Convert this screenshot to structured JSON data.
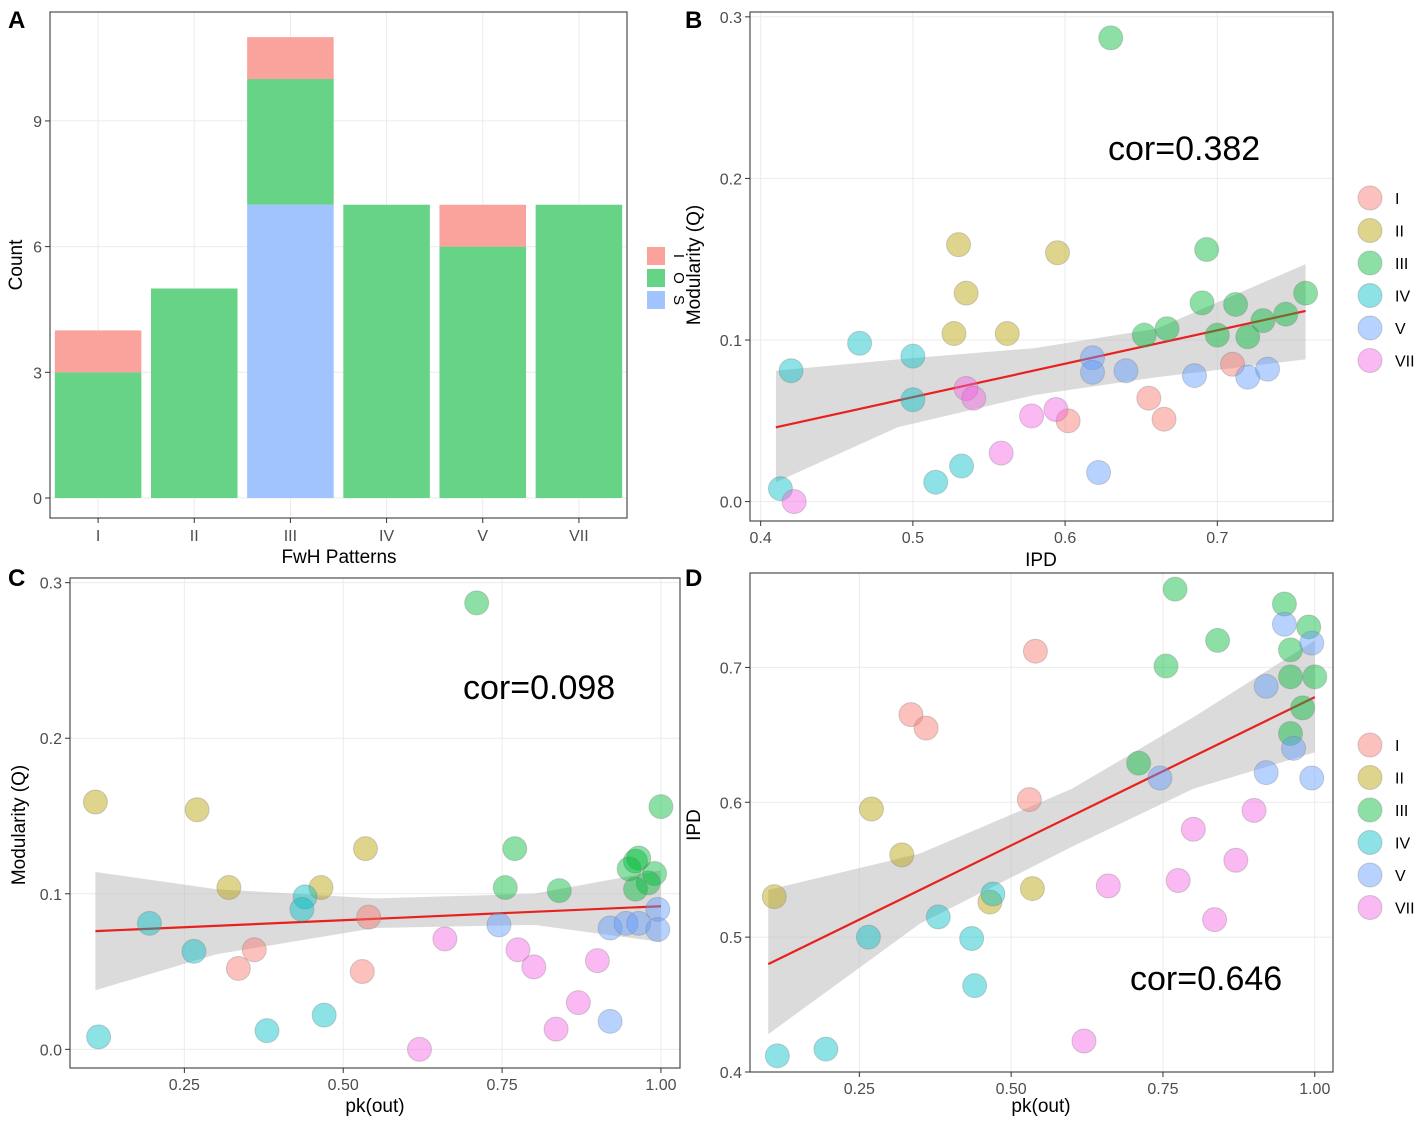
{
  "panels": [
    {
      "letter": "A"
    },
    {
      "letter": "B"
    },
    {
      "letter": "C"
    },
    {
      "letter": "D"
    }
  ],
  "colors": {
    "I": "#F8766D",
    "II": "#B79F00",
    "III": "#00BA38",
    "IV": "#00BFC4",
    "V": "#619CFF",
    "VII": "#F564E3",
    "stack_I": "#F9A39C",
    "stack_O": "#66D386",
    "stack_S": "#A1C4FF",
    "fit": "#E8211E",
    "ci_band": "#BEBEBE",
    "panel_border": "#4D4D4D",
    "grid": "#EBEBEB"
  },
  "chart_data": [
    {
      "panel": "A",
      "type": "bar",
      "stacked": true,
      "title": "",
      "xlabel": "FwH Patterns",
      "ylabel": "Count",
      "ylim": [
        0,
        11.6
      ],
      "yticks": [
        0,
        3,
        6,
        9
      ],
      "categories": [
        "I",
        "II",
        "III",
        "IV",
        "V",
        "VII"
      ],
      "series": [
        {
          "name": "S",
          "values": [
            0,
            0,
            7,
            0,
            0,
            0
          ]
        },
        {
          "name": "O",
          "values": [
            3,
            5,
            3,
            7,
            6,
            7
          ]
        },
        {
          "name": "I",
          "values": [
            1,
            0,
            1,
            0,
            1,
            0
          ]
        }
      ],
      "legend": {
        "position": "right",
        "items": [
          "I",
          "O",
          "S"
        ]
      }
    },
    {
      "panel": "B",
      "type": "scatter",
      "xlabel": "IPD",
      "ylabel": "Modularity (Q)",
      "xlim": [
        0.393,
        0.776
      ],
      "ylim": [
        -0.012,
        0.303
      ],
      "xticks": [
        0.4,
        0.5,
        0.6,
        0.7
      ],
      "xtick_labels": [
        "0.4",
        "0.5",
        "0.6",
        "0.7"
      ],
      "yticks": [
        0.0,
        0.1,
        0.2,
        0.3
      ],
      "ytick_labels": [
        "0.0",
        "0.1",
        "0.2",
        "0.3"
      ],
      "annotation": "cor=0.382",
      "fit": {
        "x": [
          0.41,
          0.758
        ],
        "y": [
          0.046,
          0.118
        ]
      },
      "ci_band": {
        "x": [
          0.41,
          0.49,
          0.58,
          0.66,
          0.758
        ],
        "upper": [
          0.081,
          0.088,
          0.095,
          0.107,
          0.147
        ],
        "lower": [
          0.012,
          0.046,
          0.066,
          0.077,
          0.088
        ]
      },
      "legend": {
        "position": "right",
        "items": [
          "I",
          "II",
          "III",
          "IV",
          "V",
          "VII"
        ]
      },
      "points": [
        {
          "g": "II",
          "x": 0.53,
          "y": 0.159
        },
        {
          "g": "II",
          "x": 0.595,
          "y": 0.154
        },
        {
          "g": "II",
          "x": 0.535,
          "y": 0.129
        },
        {
          "g": "II",
          "x": 0.527,
          "y": 0.104
        },
        {
          "g": "II",
          "x": 0.562,
          "y": 0.104
        },
        {
          "g": "III",
          "x": 0.63,
          "y": 0.287
        },
        {
          "g": "III",
          "x": 0.693,
          "y": 0.156
        },
        {
          "g": "III",
          "x": 0.758,
          "y": 0.129
        },
        {
          "g": "III",
          "x": 0.69,
          "y": 0.123
        },
        {
          "g": "III",
          "x": 0.712,
          "y": 0.122
        },
        {
          "g": "III",
          "x": 0.745,
          "y": 0.116
        },
        {
          "g": "III",
          "x": 0.73,
          "y": 0.112
        },
        {
          "g": "III",
          "x": 0.667,
          "y": 0.107
        },
        {
          "g": "III",
          "x": 0.652,
          "y": 0.103
        },
        {
          "g": "III",
          "x": 0.7,
          "y": 0.103
        },
        {
          "g": "III",
          "x": 0.72,
          "y": 0.102
        },
        {
          "g": "I",
          "x": 0.71,
          "y": 0.085
        },
        {
          "g": "I",
          "x": 0.655,
          "y": 0.064
        },
        {
          "g": "I",
          "x": 0.665,
          "y": 0.051
        },
        {
          "g": "I",
          "x": 0.602,
          "y": 0.05
        },
        {
          "g": "IV",
          "x": 0.465,
          "y": 0.098
        },
        {
          "g": "IV",
          "x": 0.5,
          "y": 0.09
        },
        {
          "g": "IV",
          "x": 0.42,
          "y": 0.081
        },
        {
          "g": "IV",
          "x": 0.5,
          "y": 0.063
        },
        {
          "g": "IV",
          "x": 0.532,
          "y": 0.022
        },
        {
          "g": "IV",
          "x": 0.515,
          "y": 0.012
        },
        {
          "g": "IV",
          "x": 0.413,
          "y": 0.008
        },
        {
          "g": "V",
          "x": 0.618,
          "y": 0.089
        },
        {
          "g": "V",
          "x": 0.64,
          "y": 0.081
        },
        {
          "g": "V",
          "x": 0.618,
          "y": 0.08
        },
        {
          "g": "V",
          "x": 0.685,
          "y": 0.078
        },
        {
          "g": "V",
          "x": 0.72,
          "y": 0.077
        },
        {
          "g": "V",
          "x": 0.733,
          "y": 0.082
        },
        {
          "g": "V",
          "x": 0.622,
          "y": 0.018
        },
        {
          "g": "VII",
          "x": 0.535,
          "y": 0.07
        },
        {
          "g": "VII",
          "x": 0.54,
          "y": 0.064
        },
        {
          "g": "VII",
          "x": 0.578,
          "y": 0.053
        },
        {
          "g": "VII",
          "x": 0.594,
          "y": 0.057
        },
        {
          "g": "VII",
          "x": 0.558,
          "y": 0.03
        },
        {
          "g": "VII",
          "x": 0.422,
          "y": 0.0
        }
      ]
    },
    {
      "panel": "C",
      "type": "scatter",
      "xlabel": "pk(out)",
      "ylabel": "Modularity (Q)",
      "xlim": [
        0.07,
        1.03
      ],
      "ylim": [
        -0.012,
        0.303
      ],
      "xticks": [
        0.25,
        0.5,
        0.75,
        1.0
      ],
      "xtick_labels": [
        "0.25",
        "0.50",
        "0.75",
        "1.00"
      ],
      "yticks": [
        0.0,
        0.1,
        0.2,
        0.3
      ],
      "ytick_labels": [
        "0.0",
        "0.1",
        "0.2",
        "0.3"
      ],
      "annotation": "cor=0.098",
      "fit": {
        "x": [
          0.11,
          1.0
        ],
        "y": [
          0.076,
          0.092
        ]
      },
      "ci_band": {
        "x": [
          0.11,
          0.3,
          0.55,
          0.8,
          1.0
        ],
        "upper": [
          0.114,
          0.103,
          0.097,
          0.1,
          0.115
        ],
        "lower": [
          0.038,
          0.061,
          0.078,
          0.08,
          0.069
        ]
      },
      "points": [
        {
          "g": "II",
          "x": 0.11,
          "y": 0.159
        },
        {
          "g": "II",
          "x": 0.27,
          "y": 0.154
        },
        {
          "g": "II",
          "x": 0.535,
          "y": 0.129
        },
        {
          "g": "II",
          "x": 0.32,
          "y": 0.104
        },
        {
          "g": "II",
          "x": 0.465,
          "y": 0.104
        },
        {
          "g": "III",
          "x": 0.71,
          "y": 0.287
        },
        {
          "g": "III",
          "x": 1.0,
          "y": 0.156
        },
        {
          "g": "III",
          "x": 0.77,
          "y": 0.129
        },
        {
          "g": "III",
          "x": 0.965,
          "y": 0.123
        },
        {
          "g": "III",
          "x": 0.96,
          "y": 0.121
        },
        {
          "g": "III",
          "x": 0.99,
          "y": 0.113
        },
        {
          "g": "III",
          "x": 0.95,
          "y": 0.116
        },
        {
          "g": "III",
          "x": 0.98,
          "y": 0.107
        },
        {
          "g": "III",
          "x": 0.96,
          "y": 0.103
        },
        {
          "g": "III",
          "x": 0.755,
          "y": 0.104
        },
        {
          "g": "III",
          "x": 0.84,
          "y": 0.102
        },
        {
          "g": "I",
          "x": 0.54,
          "y": 0.085
        },
        {
          "g": "I",
          "x": 0.36,
          "y": 0.064
        },
        {
          "g": "I",
          "x": 0.335,
          "y": 0.052
        },
        {
          "g": "I",
          "x": 0.53,
          "y": 0.05
        },
        {
          "g": "IV",
          "x": 0.44,
          "y": 0.098
        },
        {
          "g": "IV",
          "x": 0.435,
          "y": 0.09
        },
        {
          "g": "IV",
          "x": 0.195,
          "y": 0.081
        },
        {
          "g": "IV",
          "x": 0.265,
          "y": 0.063
        },
        {
          "g": "IV",
          "x": 0.47,
          "y": 0.022
        },
        {
          "g": "IV",
          "x": 0.38,
          "y": 0.012
        },
        {
          "g": "IV",
          "x": 0.115,
          "y": 0.008
        },
        {
          "g": "V",
          "x": 0.995,
          "y": 0.09
        },
        {
          "g": "V",
          "x": 0.745,
          "y": 0.08
        },
        {
          "g": "V",
          "x": 0.92,
          "y": 0.078
        },
        {
          "g": "V",
          "x": 0.945,
          "y": 0.081
        },
        {
          "g": "V",
          "x": 0.965,
          "y": 0.081
        },
        {
          "g": "V",
          "x": 0.995,
          "y": 0.077
        },
        {
          "g": "V",
          "x": 0.92,
          "y": 0.018
        },
        {
          "g": "VII",
          "x": 0.66,
          "y": 0.071
        },
        {
          "g": "VII",
          "x": 0.775,
          "y": 0.064
        },
        {
          "g": "VII",
          "x": 0.8,
          "y": 0.053
        },
        {
          "g": "VII",
          "x": 0.9,
          "y": 0.057
        },
        {
          "g": "VII",
          "x": 0.87,
          "y": 0.03
        },
        {
          "g": "VII",
          "x": 0.835,
          "y": 0.013
        },
        {
          "g": "VII",
          "x": 0.62,
          "y": 0.0
        }
      ]
    },
    {
      "panel": "D",
      "type": "scatter",
      "xlabel": "pk(out)",
      "ylabel": "IPD",
      "xlim": [
        0.07,
        1.03
      ],
      "ylim": [
        0.4,
        0.77
      ],
      "xticks": [
        0.25,
        0.5,
        0.75,
        1.0
      ],
      "xtick_labels": [
        "0.25",
        "0.50",
        "0.75",
        "1.00"
      ],
      "yticks": [
        0.4,
        0.5,
        0.6,
        0.7
      ],
      "ytick_labels": [
        "0.4",
        "0.5",
        "0.6",
        "0.7"
      ],
      "annotation": "cor=0.646",
      "fit": {
        "x": [
          0.1,
          1.0
        ],
        "y": [
          0.48,
          0.678
        ]
      },
      "ci_band": {
        "x": [
          0.1,
          0.35,
          0.6,
          0.8,
          1.0
        ],
        "upper": [
          0.535,
          0.562,
          0.61,
          0.663,
          0.72
        ],
        "lower": [
          0.428,
          0.51,
          0.567,
          0.61,
          0.637
        ]
      },
      "legend": {
        "position": "right",
        "items": [
          "I",
          "II",
          "III",
          "IV",
          "V",
          "VII"
        ]
      },
      "points": [
        {
          "g": "III",
          "x": 0.77,
          "y": 0.758
        },
        {
          "g": "III",
          "x": 0.95,
          "y": 0.747
        },
        {
          "g": "III",
          "x": 0.99,
          "y": 0.73
        },
        {
          "g": "III",
          "x": 0.84,
          "y": 0.72
        },
        {
          "g": "III",
          "x": 0.96,
          "y": 0.713
        },
        {
          "g": "III",
          "x": 0.755,
          "y": 0.701
        },
        {
          "g": "III",
          "x": 0.96,
          "y": 0.693
        },
        {
          "g": "III",
          "x": 1.0,
          "y": 0.693
        },
        {
          "g": "III",
          "x": 0.98,
          "y": 0.67
        },
        {
          "g": "III",
          "x": 0.96,
          "y": 0.651
        },
        {
          "g": "III",
          "x": 0.71,
          "y": 0.629
        },
        {
          "g": "I",
          "x": 0.54,
          "y": 0.712
        },
        {
          "g": "I",
          "x": 0.335,
          "y": 0.665
        },
        {
          "g": "I",
          "x": 0.36,
          "y": 0.655
        },
        {
          "g": "I",
          "x": 0.53,
          "y": 0.602
        },
        {
          "g": "II",
          "x": 0.27,
          "y": 0.595
        },
        {
          "g": "II",
          "x": 0.32,
          "y": 0.561
        },
        {
          "g": "II",
          "x": 0.535,
          "y": 0.536
        },
        {
          "g": "II",
          "x": 0.11,
          "y": 0.53
        },
        {
          "g": "II",
          "x": 0.465,
          "y": 0.526
        },
        {
          "g": "V",
          "x": 0.95,
          "y": 0.732
        },
        {
          "g": "V",
          "x": 0.995,
          "y": 0.718
        },
        {
          "g": "V",
          "x": 0.92,
          "y": 0.686
        },
        {
          "g": "V",
          "x": 0.965,
          "y": 0.64
        },
        {
          "g": "V",
          "x": 0.92,
          "y": 0.622
        },
        {
          "g": "V",
          "x": 0.995,
          "y": 0.618
        },
        {
          "g": "V",
          "x": 0.745,
          "y": 0.618
        },
        {
          "g": "IV",
          "x": 0.47,
          "y": 0.532
        },
        {
          "g": "IV",
          "x": 0.38,
          "y": 0.515
        },
        {
          "g": "IV",
          "x": 0.265,
          "y": 0.5
        },
        {
          "g": "IV",
          "x": 0.435,
          "y": 0.499
        },
        {
          "g": "IV",
          "x": 0.44,
          "y": 0.464
        },
        {
          "g": "IV",
          "x": 0.195,
          "y": 0.417
        },
        {
          "g": "IV",
          "x": 0.115,
          "y": 0.412
        },
        {
          "g": "VII",
          "x": 0.9,
          "y": 0.594
        },
        {
          "g": "VII",
          "x": 0.8,
          "y": 0.58
        },
        {
          "g": "VII",
          "x": 0.87,
          "y": 0.557
        },
        {
          "g": "VII",
          "x": 0.775,
          "y": 0.542
        },
        {
          "g": "VII",
          "x": 0.66,
          "y": 0.538
        },
        {
          "g": "VII",
          "x": 0.835,
          "y": 0.513
        },
        {
          "g": "VII",
          "x": 0.62,
          "y": 0.423
        }
      ]
    }
  ]
}
